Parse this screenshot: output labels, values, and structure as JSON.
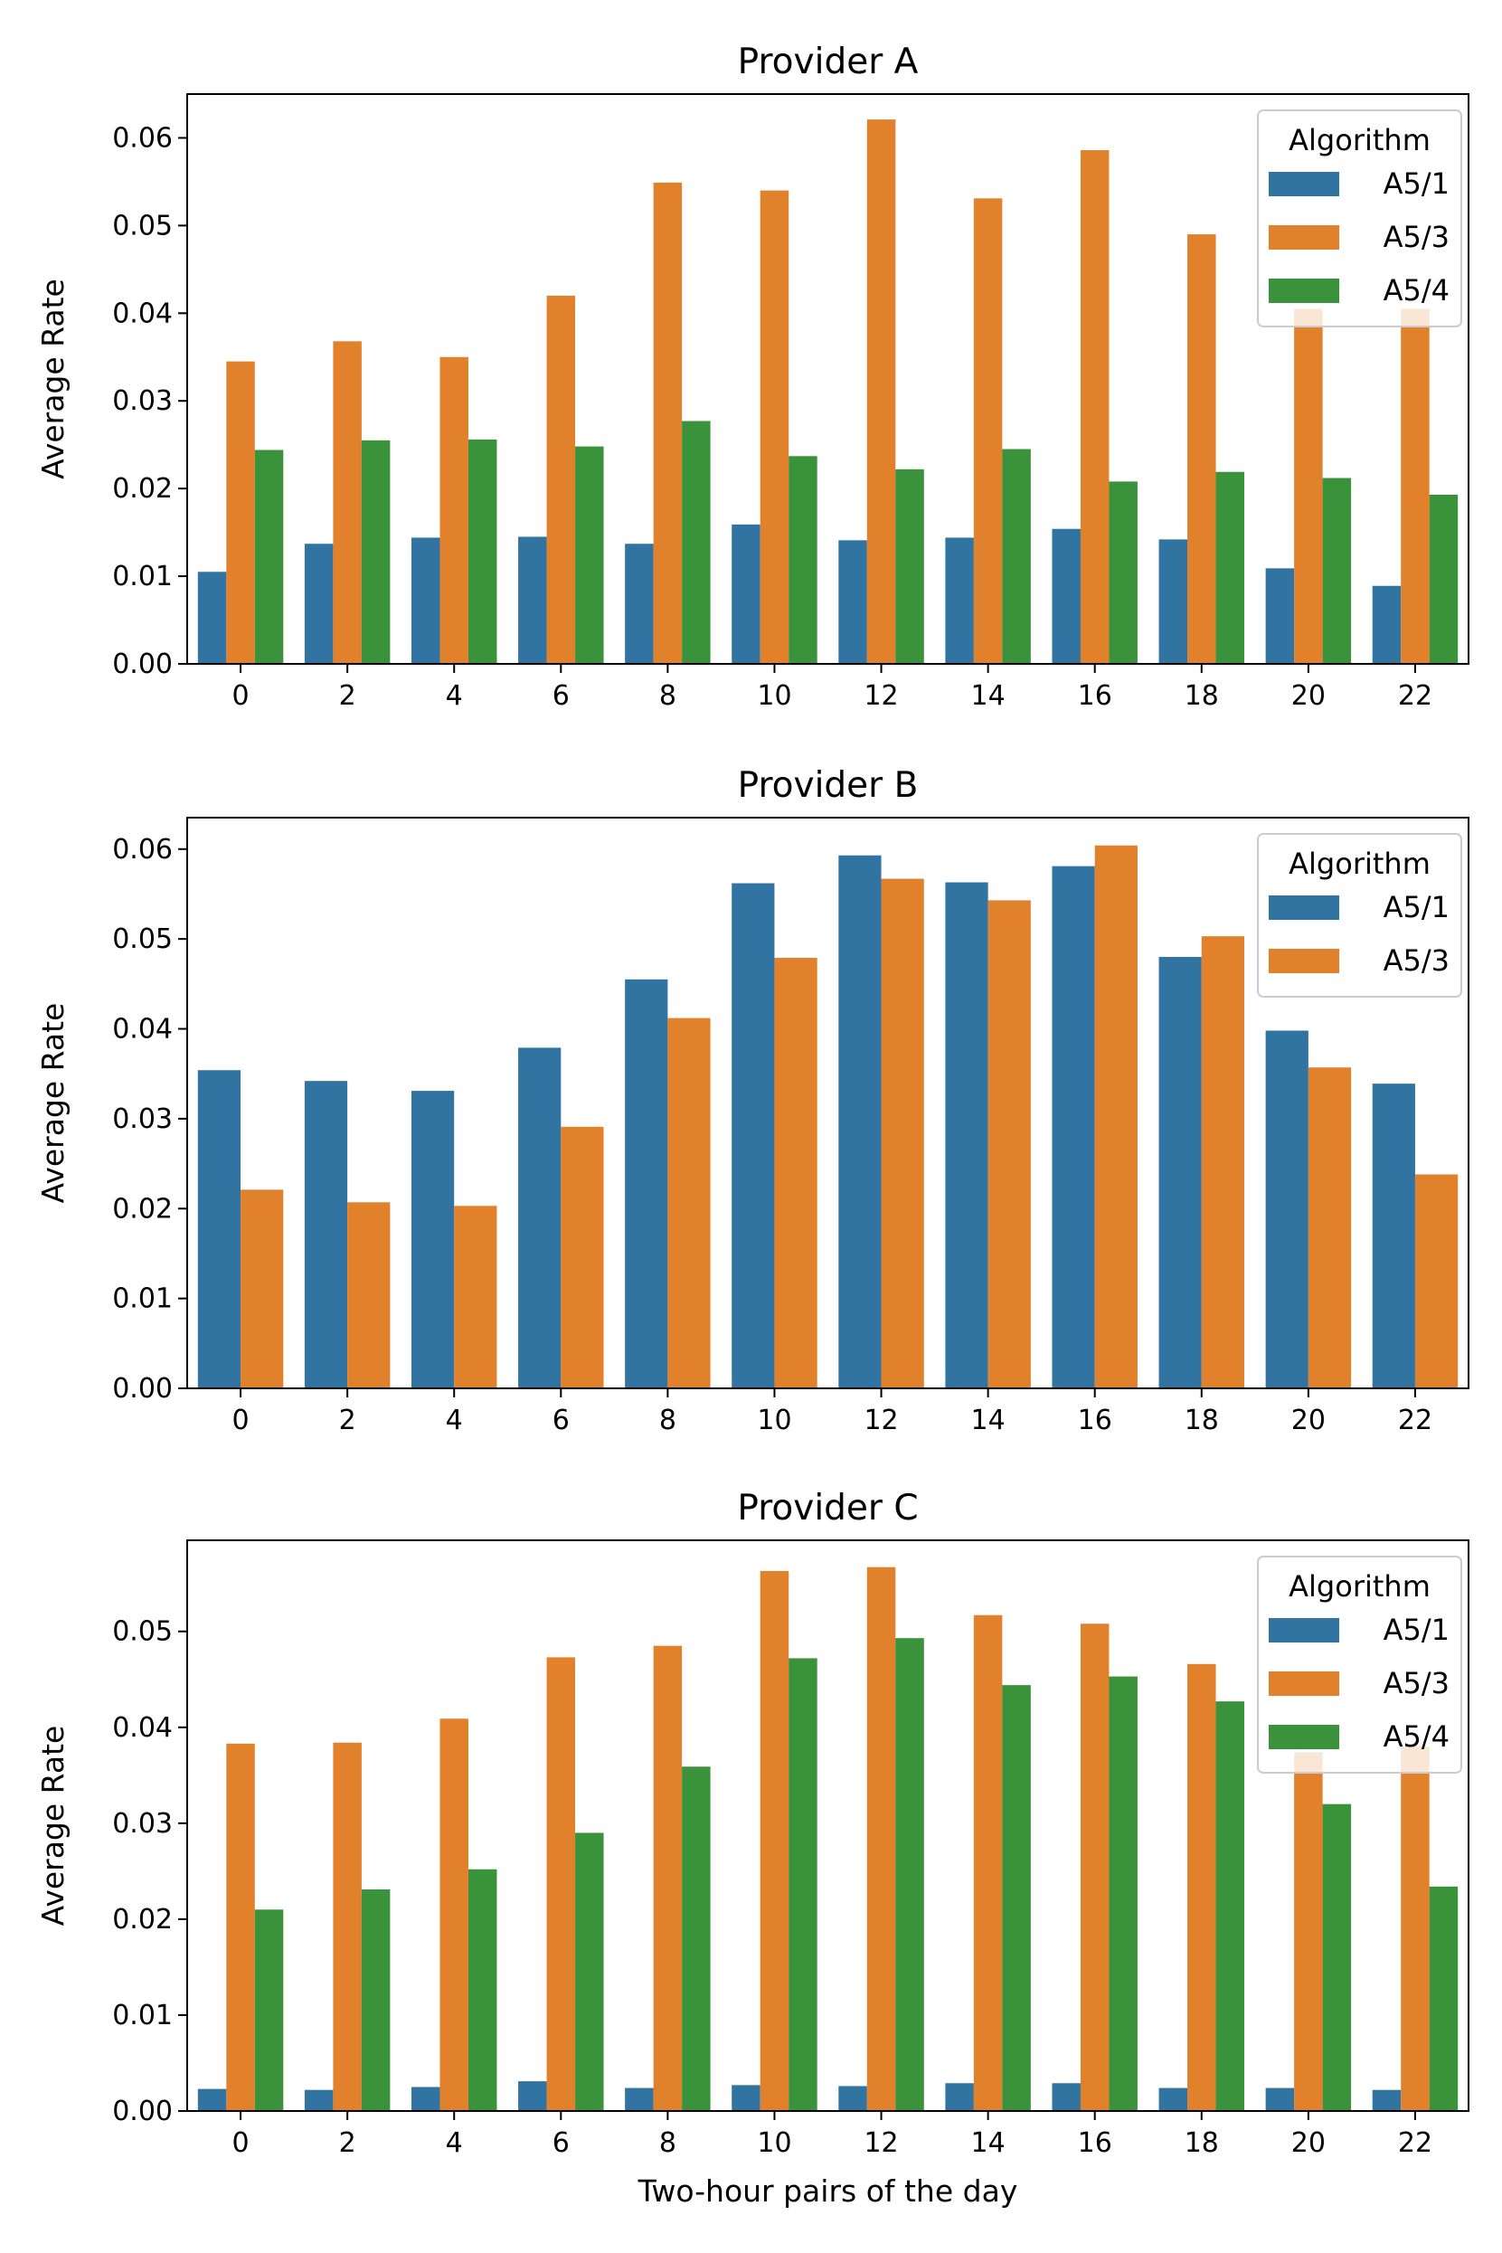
{
  "chart_data": [
    {
      "type": "bar",
      "title": "Provider A",
      "xlabel": "",
      "ylabel": "Average Rate",
      "categories": [
        "0",
        "2",
        "4",
        "6",
        "8",
        "10",
        "12",
        "14",
        "16",
        "18",
        "20",
        "22"
      ],
      "ylim": [
        0,
        0.065
      ],
      "yticks": [
        "0.00",
        "0.01",
        "0.02",
        "0.03",
        "0.04",
        "0.05",
        "0.06"
      ],
      "legend": {
        "title": "Algorithm",
        "location": "top-right"
      },
      "series": [
        {
          "name": "A5/1",
          "color": "#3274a1",
          "values": [
            0.0105,
            0.0137,
            0.0144,
            0.0145,
            0.0137,
            0.0159,
            0.0141,
            0.0144,
            0.0154,
            0.0142,
            0.0109,
            0.0089
          ]
        },
        {
          "name": "A5/3",
          "color": "#e1812c",
          "values": [
            0.0345,
            0.0368,
            0.035,
            0.042,
            0.0549,
            0.054,
            0.0621,
            0.0531,
            0.0586,
            0.049,
            0.0405,
            0.0405
          ]
        },
        {
          "name": "A5/4",
          "color": "#3a923a",
          "values": [
            0.0244,
            0.0255,
            0.0256,
            0.0248,
            0.0277,
            0.0237,
            0.0222,
            0.0245,
            0.0208,
            0.0219,
            0.0212,
            0.0193
          ]
        }
      ]
    },
    {
      "type": "bar",
      "title": "Provider B",
      "xlabel": "",
      "ylabel": "Average Rate",
      "categories": [
        "0",
        "2",
        "4",
        "6",
        "8",
        "10",
        "12",
        "14",
        "16",
        "18",
        "20",
        "22"
      ],
      "ylim": [
        0,
        0.0635
      ],
      "yticks": [
        "0.00",
        "0.01",
        "0.02",
        "0.03",
        "0.04",
        "0.05",
        "0.06"
      ],
      "legend": {
        "title": "Algorithm",
        "location": "top-right"
      },
      "series": [
        {
          "name": "A5/1",
          "color": "#3274a1",
          "values": [
            0.0354,
            0.0342,
            0.0331,
            0.0379,
            0.0455,
            0.0562,
            0.0593,
            0.0563,
            0.0581,
            0.048,
            0.0398,
            0.0339
          ]
        },
        {
          "name": "A5/3",
          "color": "#e1812c",
          "values": [
            0.0221,
            0.0207,
            0.0203,
            0.0291,
            0.0412,
            0.0479,
            0.0567,
            0.0543,
            0.0604,
            0.0503,
            0.0357,
            0.0238
          ]
        }
      ]
    },
    {
      "type": "bar",
      "title": "Provider C",
      "xlabel": "Two-hour pairs of the day",
      "ylabel": "Average Rate",
      "categories": [
        "0",
        "2",
        "4",
        "6",
        "8",
        "10",
        "12",
        "14",
        "16",
        "18",
        "20",
        "22"
      ],
      "ylim": [
        0,
        0.0595
      ],
      "yticks": [
        "0.00",
        "0.01",
        "0.02",
        "0.03",
        "0.04",
        "0.05"
      ],
      "legend": {
        "title": "Algorithm",
        "location": "top-right"
      },
      "series": [
        {
          "name": "A5/1",
          "color": "#3274a1",
          "values": [
            0.0023,
            0.0022,
            0.0025,
            0.0031,
            0.0024,
            0.0027,
            0.0026,
            0.0029,
            0.0029,
            0.0024,
            0.0024,
            0.0022
          ]
        },
        {
          "name": "A5/3",
          "color": "#e1812c",
          "values": [
            0.0383,
            0.0384,
            0.0409,
            0.0473,
            0.0485,
            0.0563,
            0.0567,
            0.0517,
            0.0508,
            0.0466,
            0.0374,
            0.038
          ]
        },
        {
          "name": "A5/4",
          "color": "#3a923a",
          "values": [
            0.021,
            0.0231,
            0.0252,
            0.029,
            0.0359,
            0.0472,
            0.0493,
            0.0444,
            0.0453,
            0.0427,
            0.032,
            0.0234
          ]
        }
      ]
    }
  ]
}
